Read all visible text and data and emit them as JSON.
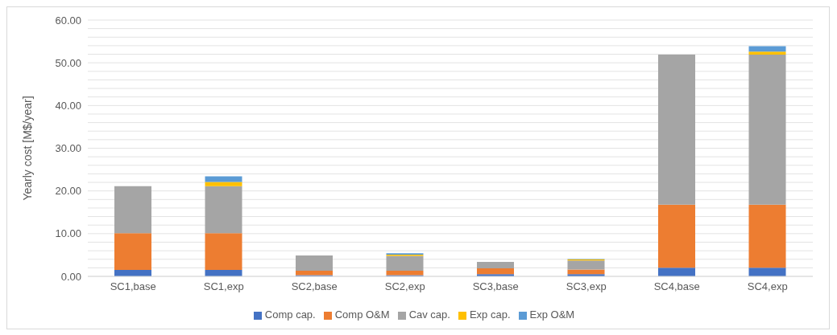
{
  "chart_data": {
    "type": "bar",
    "stacked": true,
    "ylabel": "Yearly cost [M$/year]",
    "categories": [
      "SC1,base",
      "SC1,exp",
      "SC2,base",
      "SC2,exp",
      "SC3,base",
      "SC3,exp",
      "SC4,base",
      "SC4,exp"
    ],
    "series": [
      {
        "name": "Comp cap.",
        "color": "#4472c4",
        "values": [
          1.5,
          1.5,
          0.3,
          0.3,
          0.5,
          0.5,
          2.0,
          2.0
        ]
      },
      {
        "name": "Comp O&M",
        "color": "#ed7d31",
        "values": [
          8.6,
          8.6,
          1.0,
          1.0,
          1.4,
          1.1,
          14.8,
          14.8
        ]
      },
      {
        "name": "Cav cap.",
        "color": "#a5a5a5",
        "values": [
          11.0,
          11.0,
          3.6,
          3.5,
          1.5,
          2.1,
          35.1,
          35.1
        ]
      },
      {
        "name": "Exp cap.",
        "color": "#ffc000",
        "values": [
          null,
          1.0,
          null,
          0.3,
          null,
          0.3,
          null,
          0.7
        ]
      },
      {
        "name": "Exp O&M",
        "color": "#5b9bd5",
        "values": [
          null,
          1.3,
          null,
          0.3,
          null,
          0.1,
          null,
          1.3
        ]
      }
    ],
    "ylim": [
      0,
      60
    ],
    "yticks": [
      {
        "value": 0,
        "label": "0.00"
      },
      {
        "value": 2,
        "label": null
      },
      {
        "value": 4,
        "label": null
      },
      {
        "value": 6,
        "label": null
      },
      {
        "value": 8,
        "label": null
      },
      {
        "value": 10,
        "label": "10.00"
      },
      {
        "value": 12,
        "label": null
      },
      {
        "value": 14,
        "label": null
      },
      {
        "value": 16,
        "label": null
      },
      {
        "value": 18,
        "label": null
      },
      {
        "value": 20,
        "label": "20.00"
      },
      {
        "value": 22,
        "label": null
      },
      {
        "value": 24,
        "label": null
      },
      {
        "value": 26,
        "label": null
      },
      {
        "value": 28,
        "label": null
      },
      {
        "value": 30,
        "label": "30.00"
      },
      {
        "value": 32,
        "label": null
      },
      {
        "value": 34,
        "label": null
      },
      {
        "value": 36,
        "label": null
      },
      {
        "value": 38,
        "label": null
      },
      {
        "value": 40,
        "label": "40.00"
      },
      {
        "value": 42,
        "label": null
      },
      {
        "value": 44,
        "label": null
      },
      {
        "value": 46,
        "label": null
      },
      {
        "value": 48,
        "label": null
      },
      {
        "value": 50,
        "label": "50.00"
      },
      {
        "value": 52,
        "label": null
      },
      {
        "value": 54,
        "label": null
      },
      {
        "value": 56,
        "label": null
      },
      {
        "value": 58,
        "label": null
      },
      {
        "value": 60,
        "label": "60.00"
      }
    ],
    "grid": "y",
    "legend": "bottom"
  }
}
